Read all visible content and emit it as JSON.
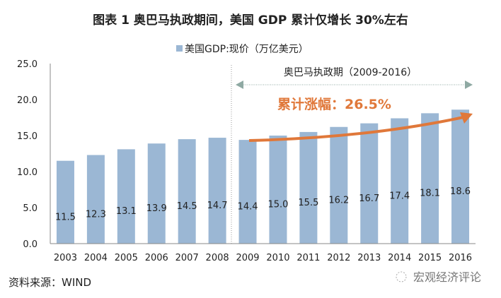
{
  "chart_data": {
    "type": "bar",
    "title": "图表 1  奥巴马执政期间，美国 GDP 累计仅增长 30%左右",
    "categories": [
      "2003",
      "2004",
      "2005",
      "2006",
      "2007",
      "2008",
      "2009",
      "2010",
      "2011",
      "2012",
      "2013",
      "2014",
      "2015",
      "2016"
    ],
    "series": [
      {
        "name": "美国GDP:现价（万亿美元）",
        "values": [
          11.5,
          12.3,
          13.1,
          13.9,
          14.5,
          14.7,
          14.4,
          15.0,
          15.5,
          16.2,
          16.7,
          17.4,
          18.1,
          18.6
        ]
      }
    ],
    "ylim": [
      0,
      25
    ],
    "yticks": [
      "0.0",
      "5.0",
      "10.0",
      "15.0",
      "20.0",
      "25.0"
    ],
    "xlabel": "",
    "ylabel": "",
    "legend_position": "top-center",
    "annotations": {
      "period": "奥巴马执政期（2009-2016）",
      "growth": "累计涨幅：26.5%"
    },
    "source": "资料来源：WIND",
    "watermark": "宏观经济评论",
    "colors": {
      "bar": "#9bb7d4",
      "arrow": "#e0783a",
      "period_arrow": "#8fa9a3",
      "growth_text": "#e0783a"
    }
  }
}
